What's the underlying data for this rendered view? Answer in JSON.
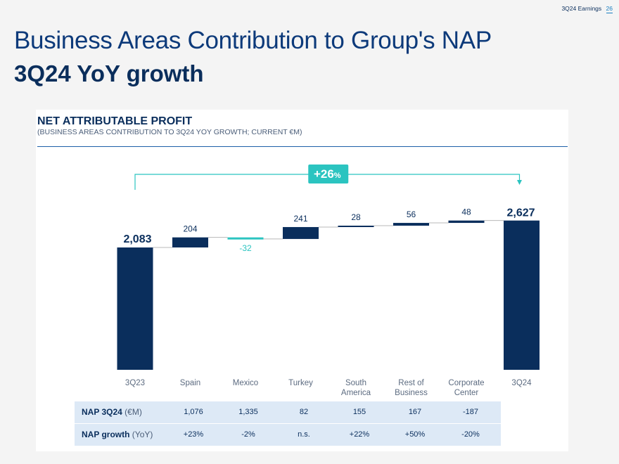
{
  "header": {
    "label": "3Q24 Earnings",
    "page": "26"
  },
  "title": {
    "line1": "Business Areas Contribution to Group's NAP",
    "line2": "3Q24 YoY growth"
  },
  "chart_header": {
    "title": "NET ATTRIBUTABLE PROFIT",
    "subtitle": "(BUSINESS AREAS CONTRIBUTION TO 3Q24 YOY GROWTH; CURRENT €M)"
  },
  "chart_data": {
    "type": "bar",
    "subtype": "waterfall",
    "categories": [
      "3Q23",
      "Spain",
      "Mexico",
      "Turkey",
      "South America",
      "Rest of Business",
      "Corporate Center",
      "3Q24"
    ],
    "category_lines": [
      [
        "3Q23"
      ],
      [
        "Spain"
      ],
      [
        "Mexico"
      ],
      [
        "Turkey"
      ],
      [
        "South",
        "America"
      ],
      [
        "Rest of",
        "Business"
      ],
      [
        "Corporate",
        "Center"
      ],
      [
        "3Q24"
      ]
    ],
    "values": [
      2083,
      204,
      -32,
      241,
      28,
      56,
      48,
      2627
    ],
    "value_labels": [
      "2,083",
      "204",
      "-32",
      "241",
      "28",
      "56",
      "48",
      "2,627"
    ],
    "bar_kind": [
      "total",
      "delta",
      "delta",
      "delta",
      "delta",
      "delta",
      "delta",
      "total"
    ],
    "growth_annotation": {
      "number": "+26",
      "unit": "%"
    },
    "colors": {
      "bar": "#0a2e5c",
      "negative": "#2bc4c0",
      "bracket": "#2bc4c0",
      "connector": "#b8b8b8",
      "badge": "#2bc4c0"
    }
  },
  "table": {
    "rows": [
      {
        "label": "NAP 3Q24",
        "unit": "(€M)",
        "values": [
          "1,076",
          "1,335",
          "82",
          "155",
          "167",
          "-187"
        ]
      },
      {
        "label": "NAP growth",
        "unit": "(YoY)",
        "values": [
          "+23%",
          "-2%",
          "n.s.",
          "+22%",
          "+50%",
          "-20%"
        ]
      }
    ]
  }
}
